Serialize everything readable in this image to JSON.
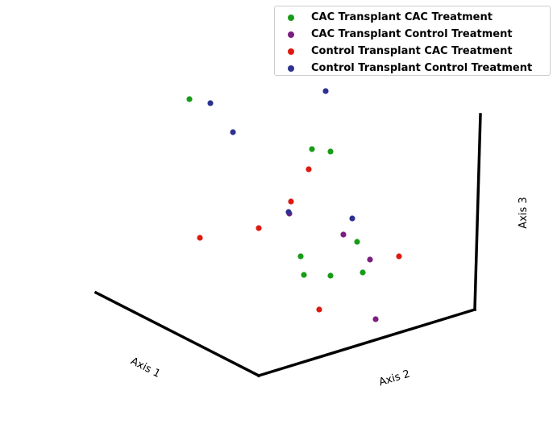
{
  "chart_data": {
    "type": "scatter",
    "title": "",
    "axis_labels": {
      "x": "Axis 1",
      "y": "Axis 2",
      "z": "Axis 3"
    },
    "legend_placement": "top-right",
    "grid": false,
    "series": [
      {
        "name": "CAC Transplant CAC Treatment",
        "color": "#179c17",
        "points": [
          [
            235,
            123
          ],
          [
            387,
            185
          ],
          [
            410,
            188
          ],
          [
            443,
            300
          ],
          [
            373,
            318
          ],
          [
            377,
            341
          ],
          [
            410,
            342
          ],
          [
            450,
            338
          ]
        ]
      },
      {
        "name": "CAC Transplant Control Treatment",
        "color": "#7b1f7f",
        "points": [
          [
            359,
            265
          ],
          [
            426,
            291
          ],
          [
            459,
            322
          ],
          [
            466,
            396
          ]
        ]
      },
      {
        "name": "Control Transplant CAC Treatment",
        "color": "#dd1a11",
        "points": [
          [
            383,
            210
          ],
          [
            361,
            250
          ],
          [
            321,
            283
          ],
          [
            248,
            295
          ],
          [
            495,
            318
          ],
          [
            396,
            384
          ]
        ]
      },
      {
        "name": "Control Transplant Control Treatment",
        "color": "#2e3190",
        "points": [
          [
            404,
            113
          ],
          [
            261,
            128
          ],
          [
            289,
            164
          ],
          [
            358,
            263
          ],
          [
            437,
            271
          ]
        ]
      }
    ]
  }
}
